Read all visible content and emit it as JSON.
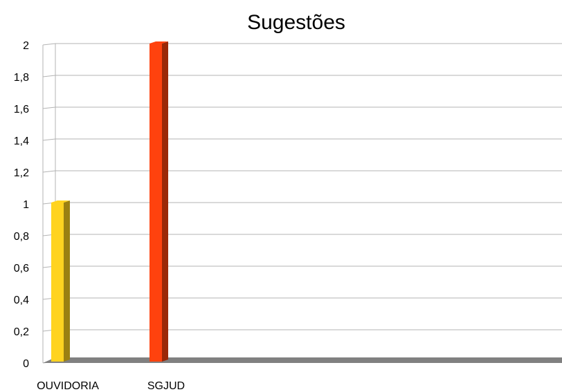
{
  "chart_data": {
    "type": "bar",
    "title": "Sugestões",
    "xlabel": "",
    "ylabel": "",
    "categories": [
      "OUVIDORIA",
      "SGJUD"
    ],
    "values": [
      1,
      2
    ],
    "ylim": [
      0,
      2
    ],
    "yticks": [
      "0",
      "0,2",
      "0,4",
      "0,6",
      "0,8",
      "1",
      "1,2",
      "1,4",
      "1,6",
      "1,8",
      "2"
    ],
    "grid": true,
    "legend": "none",
    "colors": {
      "bars": [
        "#ffd320",
        "#ff420e"
      ],
      "bar_sides": [
        "#9b8012",
        "#9b2807"
      ],
      "floor": "#808080",
      "grid": "#b3b3b3"
    }
  }
}
